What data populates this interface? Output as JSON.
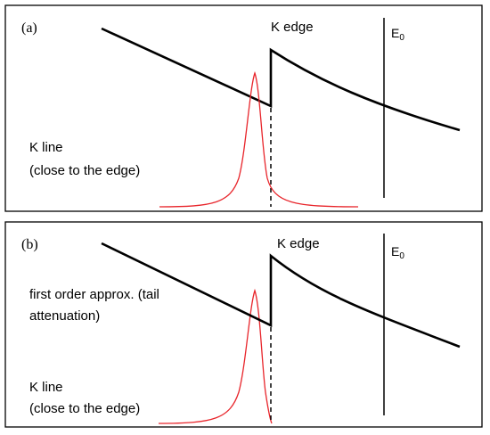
{
  "panels": [
    {
      "id": "a",
      "panel_label": "(a)",
      "edge_label": "K edge",
      "energy_label": "E",
      "energy_subscript": "0",
      "line_label_1": "K line",
      "line_label_2": "(close to the edge)"
    },
    {
      "id": "b",
      "panel_label": "(b)",
      "edge_label": "K edge",
      "energy_label": "E",
      "energy_subscript": "0",
      "approx_label_1": "first order approx. (tail",
      "approx_label_2": "attenuation)",
      "line_label_1": "K line",
      "line_label_2": "(close to the edge)"
    }
  ],
  "colors": {
    "frame": "#000000",
    "curve": "#000000",
    "peak": "#e8252b"
  }
}
